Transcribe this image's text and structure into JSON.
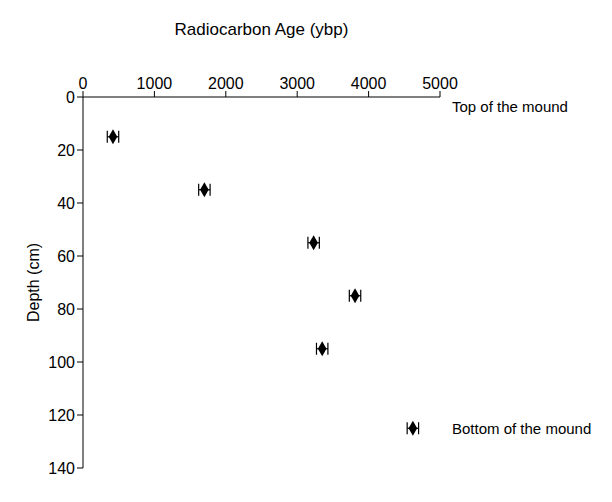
{
  "chart_data": {
    "type": "scatter",
    "x_label": "Radiocarbon Age (ybp)",
    "y_label": "Depth (cm)",
    "x": [
      420,
      1700,
      3230,
      3810,
      3350,
      4620
    ],
    "values": [
      15,
      35,
      55,
      75,
      95,
      125
    ],
    "x_error": [
      80,
      80,
      80,
      80,
      80,
      80
    ],
    "xlim": [
      0,
      5000
    ],
    "xticks": [
      0,
      1000,
      2000,
      3000,
      4000,
      5000
    ],
    "ylim": [
      0,
      140
    ],
    "yticks": [
      0,
      20,
      40,
      60,
      80,
      100,
      120,
      140
    ],
    "color": "#000000",
    "marker": "diamond",
    "grid": false,
    "annotations": [
      "Top of the mound",
      "Bottom of the mound"
    ]
  }
}
